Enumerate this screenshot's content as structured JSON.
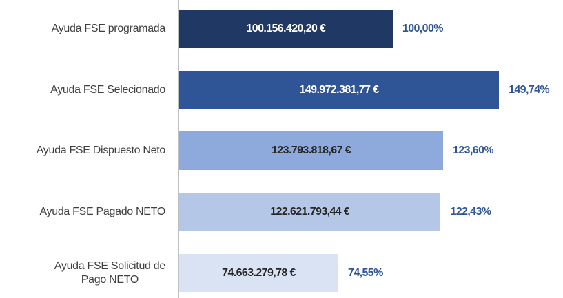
{
  "chart_data": {
    "type": "bar",
    "orientation": "horizontal",
    "categories": [
      "Ayuda FSE programada",
      "Ayuda FSE Selecionado",
      "Ayuda FSE Dispuesto Neto",
      "Ayuda FSE Pagado NETO",
      "Ayuda FSE Solicitud de\nPago NETO"
    ],
    "values": [
      100156420.2,
      149972381.77,
      123793818.67,
      122621793.44,
      74663279.78
    ],
    "value_labels": [
      "100.156.420,20 €",
      "149.972.381,77 €",
      "123.793.818,67 €",
      "122.621.793,44 €",
      "74.663.279,78 €"
    ],
    "percentages": [
      100.0,
      149.74,
      123.6,
      122.43,
      74.55
    ],
    "percentage_labels": [
      "100,00%",
      "149,74%",
      "123,60%",
      "122,43%",
      "74,55%"
    ],
    "colors": [
      "#203864",
      "#2f5597",
      "#8eaadc",
      "#b4c7e7",
      "#dae3f3"
    ],
    "percentage_color": "#2f5597",
    "xlim": [
      0,
      180000000
    ]
  }
}
